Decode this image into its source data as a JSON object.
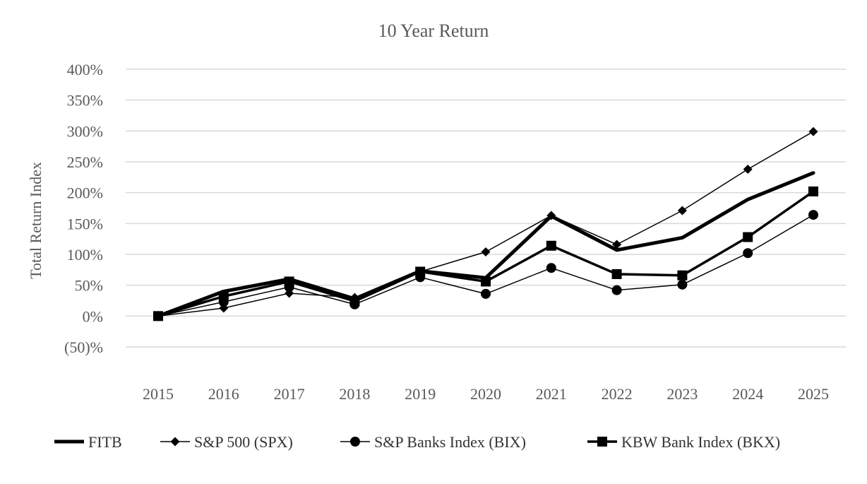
{
  "chart_data": {
    "type": "line",
    "title": "10 Year Return",
    "xlabel": "",
    "ylabel": "Total Return Index",
    "categories": [
      "2015",
      "2016",
      "2017",
      "2018",
      "2019",
      "2020",
      "2021",
      "2022",
      "2023",
      "2024",
      "2025"
    ],
    "ylim": [
      -50,
      400
    ],
    "yticks": [
      -50,
      0,
      50,
      100,
      150,
      200,
      250,
      300,
      350,
      400
    ],
    "ytick_labels": [
      "(50)%",
      "0%",
      "50%",
      "100%",
      "150%",
      "200%",
      "250%",
      "300%",
      "350%",
      "400%"
    ],
    "grid": true,
    "legend_position": "bottom",
    "series": [
      {
        "name": "FITB",
        "marker": "none",
        "line_weight": "heavy",
        "values": [
          0,
          40,
          60,
          28,
          73,
          62,
          162,
          107,
          127,
          189,
          232
        ]
      },
      {
        "name": "S&P 500 (SPX)",
        "marker": "diamond",
        "line_weight": "thin",
        "values": [
          0,
          13,
          37,
          30,
          72,
          104,
          163,
          116,
          171,
          238,
          299
        ]
      },
      {
        "name": "S&P Banks Index (BIX)",
        "marker": "circle",
        "line_weight": "thin",
        "values": [
          0,
          23,
          47,
          19,
          63,
          36,
          78,
          42,
          51,
          102,
          164
        ]
      },
      {
        "name": "KBW Bank Index (BKX)",
        "marker": "square",
        "line_weight": "medium",
        "values": [
          0,
          32,
          56,
          24,
          72,
          56,
          114,
          68,
          66,
          128,
          202
        ]
      }
    ]
  },
  "colors": {
    "series": "#000000",
    "gridline": "#d9d9d9",
    "text": "#595959"
  }
}
